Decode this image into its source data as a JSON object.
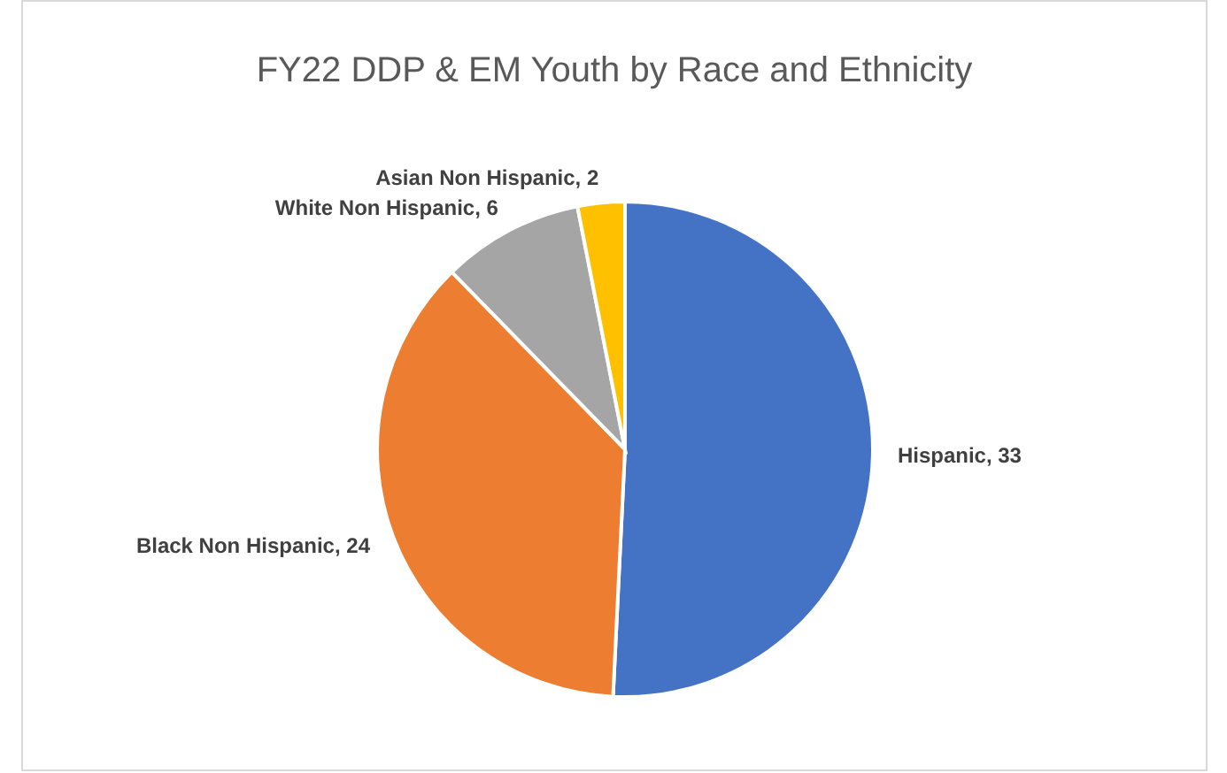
{
  "chart_data": {
    "type": "pie",
    "title": "FY22 DDP & EM Youth by Race and Ethnicity",
    "categories": [
      "Hispanic",
      "Black Non Hispanic",
      "White Non Hispanic",
      "Asian Non Hispanic"
    ],
    "values": [
      33,
      24,
      6,
      2
    ],
    "value_labels": [
      ", 33",
      ", 24",
      ", 6",
      ", 2"
    ],
    "colors": [
      "#4472c4",
      "#ed7d31",
      "#a5a5a5",
      "#ffc000"
    ],
    "legend": false
  }
}
